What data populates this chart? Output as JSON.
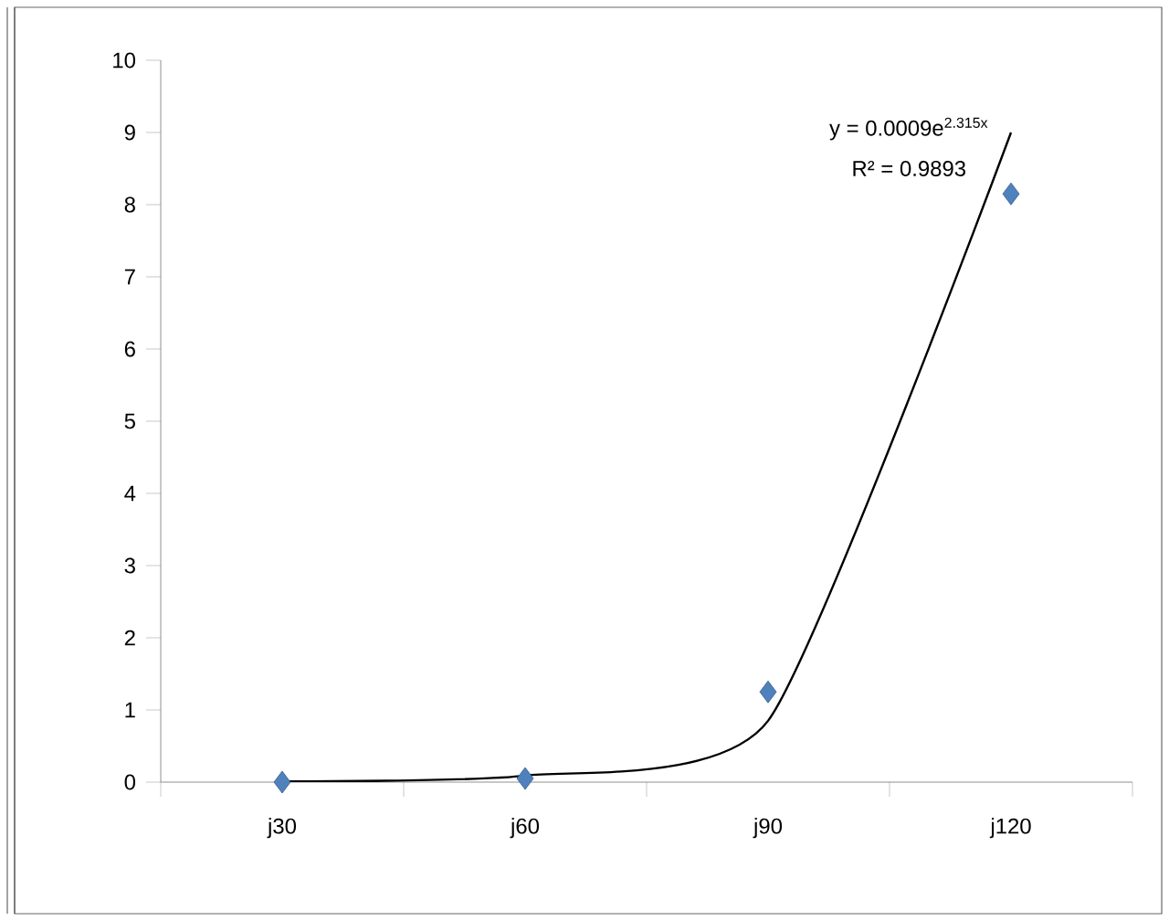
{
  "chart_data": {
    "type": "scatter",
    "categories": [
      "j30",
      "j60",
      "j90",
      "j120"
    ],
    "series": [
      {
        "color": "#4f81bd",
        "marker": "diamond",
        "values": [
          0,
          0.05,
          1.25,
          8.15
        ]
      },
      {
        "type": "line",
        "color": "#000000",
        "marker": "none",
        "values": [
          0.01,
          0.09,
          0.85,
          9.0
        ]
      }
    ],
    "ylim": [
      0,
      10
    ],
    "yticks": [
      0,
      1,
      2,
      3,
      4,
      5,
      6,
      7,
      8,
      9,
      10
    ],
    "grid": false,
    "annotations": [
      "y = 0.0009e$^{2.315x}$",
      "R² = 0.9893"
    ]
  }
}
